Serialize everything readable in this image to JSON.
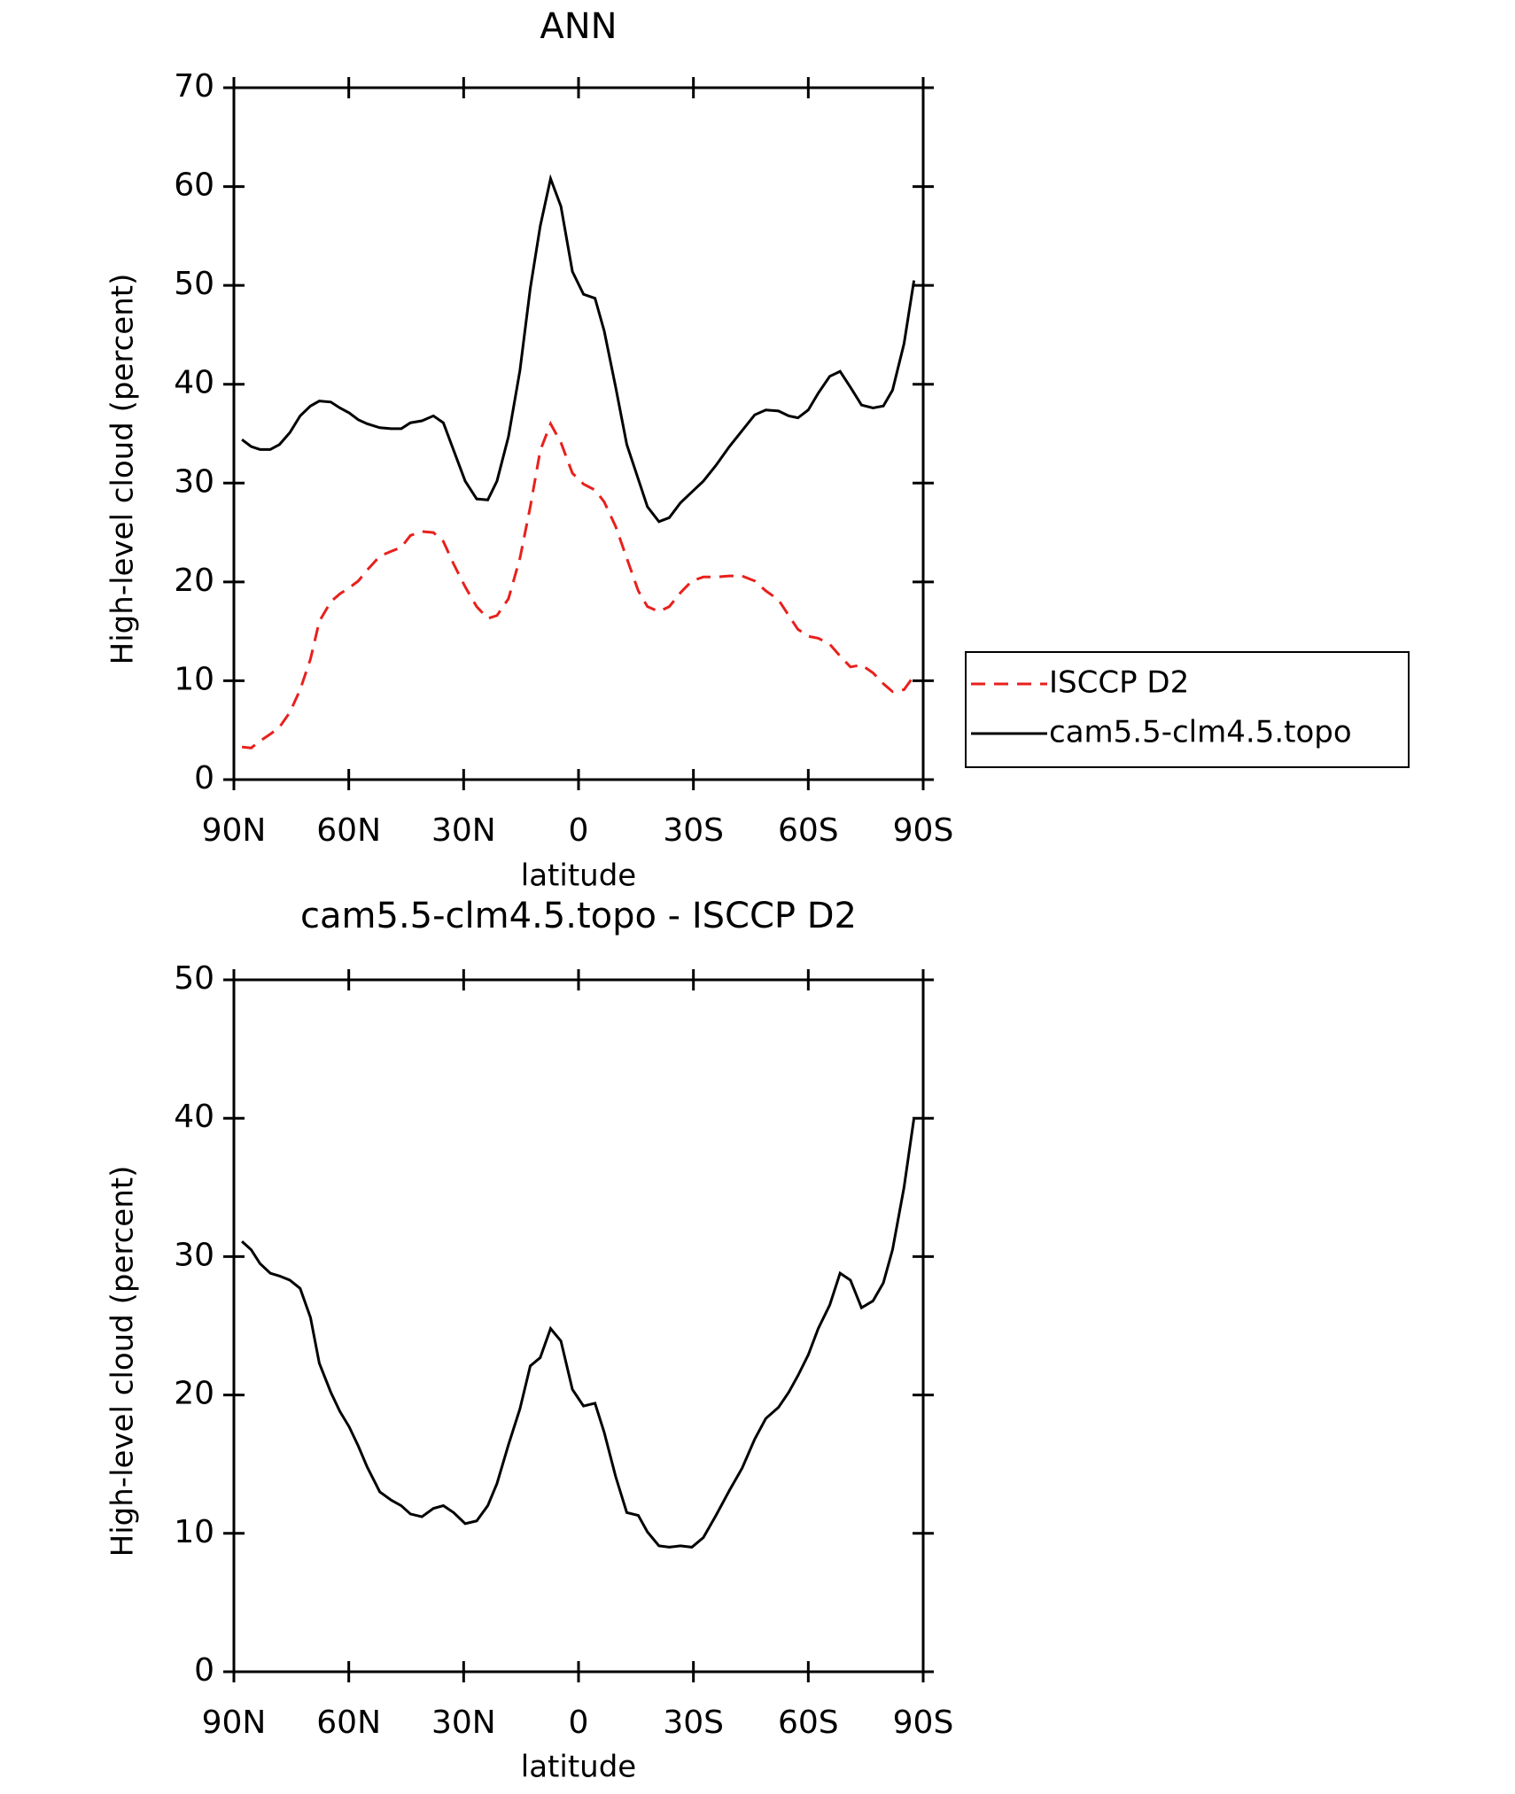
{
  "chart_data": [
    {
      "type": "line",
      "title": "ANN",
      "xlabel": "latitude",
      "ylabel": "High-level cloud (percent)",
      "x": [
        87.9,
        85.5,
        83.2,
        80.5,
        78.1,
        75.4,
        72.7,
        70.0,
        67.7,
        64.7,
        62.3,
        59.9,
        57.5,
        55.2,
        51.9,
        48.9,
        46.3,
        43.9,
        40.9,
        37.9,
        35.3,
        32.6,
        29.6,
        26.6,
        23.7,
        21.3,
        18.3,
        15.3,
        12.6,
        10.0,
        7.3,
        4.6,
        1.6,
        -1.3,
        -4.3,
        -6.7,
        -9.7,
        -12.6,
        -15.6,
        -18.0,
        -21.0,
        -23.7,
        -26.6,
        -29.6,
        -32.6,
        -35.9,
        -39.4,
        -42.7,
        -46.0,
        -48.9,
        -52.2,
        -54.9,
        -57.3,
        -60.0,
        -62.6,
        -65.6,
        -68.3,
        -71.0,
        -73.9,
        -76.9,
        -79.6,
        -82.0,
        -85.0,
        -87.6
      ],
      "series": [
        {
          "name": "ISCCP D2",
          "color": "#e8201c",
          "linestyle": "dashed",
          "values": [
            3.3,
            3.2,
            3.9,
            4.6,
            5.3,
            6.8,
            9.1,
            12.2,
            16.0,
            18.0,
            18.8,
            19.4,
            20.1,
            21.2,
            22.6,
            23.1,
            23.5,
            24.7,
            25.1,
            25.0,
            24.1,
            21.8,
            19.5,
            17.5,
            16.3,
            16.6,
            18.3,
            22.4,
            27.6,
            33.3,
            36.0,
            34.1,
            31.0,
            29.9,
            29.3,
            28.1,
            25.6,
            22.4,
            19.1,
            17.5,
            17.0,
            17.5,
            18.9,
            20.1,
            20.5,
            20.5,
            20.6,
            20.6,
            20.1,
            19.1,
            18.2,
            16.6,
            15.2,
            14.5,
            14.3,
            13.7,
            12.5,
            11.4,
            11.6,
            10.8,
            9.7,
            8.9,
            9.1,
            10.5
          ]
        },
        {
          "name": "cam5.5-clm4.5.topo",
          "color": "#000000",
          "linestyle": "solid",
          "values": [
            34.4,
            33.7,
            33.4,
            33.4,
            33.9,
            35.1,
            36.8,
            37.8,
            38.3,
            38.2,
            37.6,
            37.1,
            36.4,
            36.0,
            35.6,
            35.5,
            35.5,
            36.1,
            36.3,
            36.8,
            36.1,
            33.3,
            30.2,
            28.4,
            28.3,
            30.2,
            34.7,
            41.4,
            49.7,
            56.0,
            60.8,
            58.0,
            51.4,
            49.1,
            48.7,
            45.4,
            39.7,
            33.9,
            30.4,
            27.6,
            26.1,
            26.5,
            28.0,
            29.1,
            30.2,
            31.8,
            33.7,
            35.3,
            36.9,
            37.4,
            37.3,
            36.8,
            36.6,
            37.4,
            39.1,
            40.8,
            41.3,
            39.7,
            37.9,
            37.6,
            37.8,
            39.4,
            44.1,
            50.5
          ]
        }
      ],
      "xlim": [
        90,
        -90
      ],
      "ylim": [
        0,
        70
      ],
      "xticks": [
        {
          "value": 90,
          "label": "90N"
        },
        {
          "value": 60,
          "label": "60N"
        },
        {
          "value": 30,
          "label": "30N"
        },
        0,
        {
          "value": -30,
          "label": "30S"
        },
        {
          "value": -60,
          "label": "60S"
        },
        {
          "value": -90,
          "label": "90S"
        }
      ],
      "yticks": [
        0,
        10,
        20,
        30,
        40,
        50,
        60,
        70
      ],
      "legend": "outside-right"
    },
    {
      "type": "line",
      "title": "cam5.5-clm4.5.topo - ISCCP D2",
      "xlabel": "latitude",
      "ylabel": "High-level cloud (percent)",
      "x": [
        87.9,
        85.5,
        83.2,
        80.5,
        78.1,
        75.4,
        72.7,
        70.0,
        67.7,
        64.7,
        62.3,
        59.9,
        57.5,
        55.2,
        51.9,
        48.9,
        46.3,
        43.9,
        40.9,
        37.9,
        35.3,
        32.6,
        29.6,
        26.6,
        23.7,
        21.3,
        18.3,
        15.3,
        12.6,
        10.0,
        7.3,
        4.6,
        1.6,
        -1.3,
        -4.3,
        -6.7,
        -9.7,
        -12.6,
        -15.6,
        -18.0,
        -21.0,
        -23.7,
        -26.6,
        -29.6,
        -32.6,
        -35.9,
        -39.4,
        -42.7,
        -46.0,
        -48.9,
        -52.2,
        -54.9,
        -57.3,
        -60.0,
        -62.6,
        -65.6,
        -68.3,
        -71.0,
        -73.9,
        -76.9,
        -79.6,
        -82.0,
        -85.0,
        -87.6
      ],
      "series": [
        {
          "color": "#000000",
          "linestyle": "solid",
          "values": [
            31.1,
            30.5,
            29.5,
            28.8,
            28.6,
            28.3,
            27.7,
            25.6,
            22.3,
            20.2,
            18.8,
            17.7,
            16.3,
            14.8,
            13.0,
            12.4,
            12.0,
            11.4,
            11.2,
            11.8,
            12.0,
            11.5,
            10.7,
            10.9,
            12.0,
            13.6,
            16.4,
            19.0,
            22.1,
            22.7,
            24.8,
            23.9,
            20.4,
            19.2,
            19.4,
            17.3,
            14.1,
            11.5,
            11.3,
            10.1,
            9.1,
            9.0,
            9.1,
            9.0,
            9.7,
            11.3,
            13.1,
            14.7,
            16.8,
            18.3,
            19.1,
            20.2,
            21.4,
            22.9,
            24.8,
            26.5,
            28.8,
            28.3,
            26.3,
            26.8,
            28.1,
            30.5,
            35.0,
            40.0
          ]
        }
      ],
      "xlim": [
        90,
        -90
      ],
      "ylim": [
        0,
        50
      ],
      "xticks": [
        {
          "value": 90,
          "label": "90N"
        },
        {
          "value": 60,
          "label": "60N"
        },
        {
          "value": 30,
          "label": "30N"
        },
        0,
        {
          "value": -30,
          "label": "30S"
        },
        {
          "value": -60,
          "label": "60S"
        },
        {
          "value": -90,
          "label": "90S"
        }
      ],
      "yticks": [
        0,
        10,
        20,
        30,
        40,
        50
      ]
    }
  ]
}
